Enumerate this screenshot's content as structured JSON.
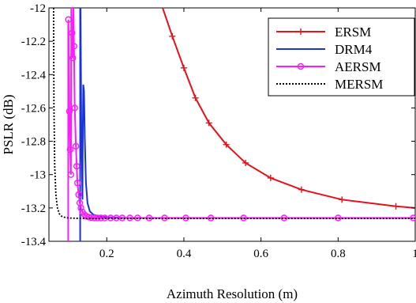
{
  "chart_data": {
    "type": "line",
    "xlabel": "Azimuth Resolution (m)",
    "ylabel": "PSLR (dB)",
    "xlim": [
      0.05,
      1.0
    ],
    "ylim": [
      -13.4,
      -12.0
    ],
    "xticks": [
      0.2,
      0.4,
      0.6,
      0.8,
      1.0
    ],
    "xtick_labels": [
      "0.2",
      "0.4",
      "0.6",
      "0.8",
      "1"
    ],
    "yticks": [
      -12.0,
      -12.2,
      -12.4,
      -12.6,
      -12.8,
      -13.0,
      -13.2,
      -13.4
    ],
    "ytick_labels": [
      "-12",
      "-12.2",
      "-12.4",
      "-12.6",
      "-12.8",
      "-13",
      "-13.2",
      "-13.4"
    ],
    "grid": false,
    "legend_position": "top-right",
    "series": [
      {
        "name": "ERSM",
        "color": "#e8101a",
        "marker": "plus",
        "x": [
          0.345,
          0.37,
          0.4,
          0.43,
          0.465,
          0.51,
          0.56,
          0.625,
          0.705,
          0.81,
          0.95,
          1.0
        ],
        "y": [
          -12.0,
          -12.17,
          -12.36,
          -12.54,
          -12.69,
          -12.82,
          -12.93,
          -13.02,
          -13.09,
          -13.15,
          -13.19,
          -13.2
        ],
        "marker_x": [
          0.37,
          0.4,
          0.43,
          0.465,
          0.51,
          0.56,
          0.625,
          0.705,
          0.81,
          0.95
        ]
      },
      {
        "name": "DRM4",
        "color": "#1a33d6",
        "marker": "none",
        "x": [
          0.131,
          0.131,
          0.132,
          0.134,
          0.137,
          0.138,
          0.139,
          0.141,
          0.143,
          0.146,
          0.15,
          0.156,
          0.165,
          0.18,
          0.2,
          0.25,
          0.35,
          1.0
        ],
        "y": [
          -13.4,
          -12.0,
          -12.0,
          -12.75,
          -13.15,
          -12.7,
          -12.46,
          -12.5,
          -12.78,
          -13.05,
          -13.17,
          -13.22,
          -13.24,
          -13.25,
          -13.255,
          -13.26,
          -13.26,
          -13.26
        ]
      },
      {
        "name": "AERSM",
        "color": "#ff1aff",
        "marker": "circle",
        "x": [
          0.1,
          0.1,
          0.1005,
          0.1015,
          0.103,
          0.105,
          0.107,
          0.108,
          0.11,
          0.112,
          0.1135,
          0.115,
          0.116,
          0.117,
          0.12,
          0.122,
          0.124,
          0.127,
          0.13,
          0.133,
          0.137,
          0.142,
          0.147,
          0.153,
          0.16,
          0.168,
          0.176,
          0.185,
          0.195,
          0.21,
          0.23,
          0.25,
          0.3,
          0.4,
          1.0
        ],
        "y": [
          -13.4,
          -12.1,
          -12.07,
          -12.25,
          -12.62,
          -12.85,
          -13.0,
          -12.0,
          -12.15,
          -12.3,
          -12.0,
          -12.23,
          -12.43,
          -12.6,
          -12.83,
          -12.95,
          -13.05,
          -13.12,
          -13.17,
          -13.2,
          -13.225,
          -13.24,
          -13.25,
          -13.255,
          -13.258,
          -13.26,
          -13.26,
          -13.26,
          -13.26,
          -13.26,
          -13.26,
          -13.26,
          -13.26,
          -13.26,
          -13.26
        ],
        "marker_x": [
          0.1005,
          0.103,
          0.105,
          0.107,
          0.11,
          0.112,
          0.115,
          0.117,
          0.12,
          0.122,
          0.124,
          0.127,
          0.13,
          0.133,
          0.137,
          0.142,
          0.147,
          0.153,
          0.16,
          0.168,
          0.176,
          0.185,
          0.195,
          0.21,
          0.225,
          0.24,
          0.26,
          0.28,
          0.31,
          0.35,
          0.405,
          0.47,
          0.555,
          0.66,
          0.8,
          0.995
        ],
        "marker_y": [
          -12.07,
          -12.62,
          -12.85,
          -13.0,
          -12.15,
          -12.3,
          -12.23,
          -12.6,
          -12.83,
          -12.95,
          -13.05,
          -13.12,
          -13.17,
          -13.2,
          -13.225,
          -13.24,
          -13.25,
          -13.255,
          -13.258,
          -13.26,
          -13.26,
          -13.26,
          -13.26,
          -13.26,
          -13.26,
          -13.26,
          -13.26,
          -13.26,
          -13.26,
          -13.26,
          -13.26,
          -13.26,
          -13.26,
          -13.26,
          -13.26,
          -13.26
        ]
      },
      {
        "name": "MERSM",
        "color": "#000000",
        "marker": "none",
        "dash": "2,2",
        "x": [
          0.062,
          0.063,
          0.065,
          0.068,
          0.072,
          0.077,
          0.083,
          0.09,
          0.1,
          0.12,
          0.15,
          0.2,
          1.0
        ],
        "y": [
          -12.0,
          -12.6,
          -12.95,
          -13.12,
          -13.2,
          -13.235,
          -13.25,
          -13.256,
          -13.26,
          -13.262,
          -13.263,
          -13.263,
          -13.263
        ]
      }
    ]
  }
}
